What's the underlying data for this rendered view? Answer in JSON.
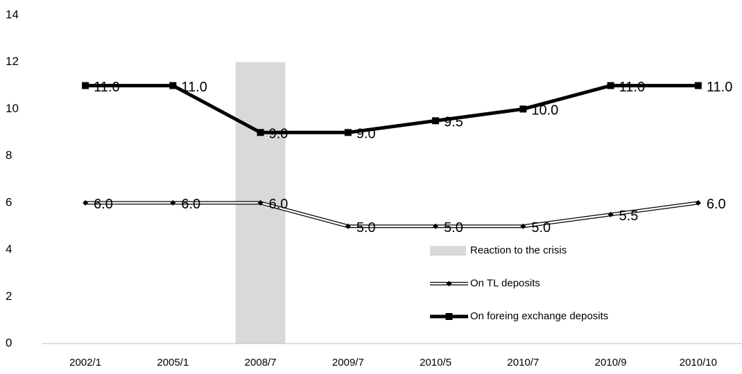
{
  "chart_data": {
    "type": "line",
    "categories": [
      "2002/1",
      "2005/1",
      "2008/7",
      "2009/7",
      "2010/5",
      "2010/7",
      "2010/9",
      "2010/10"
    ],
    "series": [
      {
        "name": "Reaction to the crisis",
        "type": "bar",
        "color": "#d9d9d9",
        "values": [
          null,
          null,
          12,
          null,
          null,
          null,
          null,
          null
        ]
      },
      {
        "name": "On TL deposits",
        "type": "line",
        "color": "#000000",
        "marker": "diamond",
        "values": [
          6,
          6,
          6,
          5,
          5,
          5,
          5.5,
          6
        ],
        "value_labels": [
          "6.0",
          "6.0",
          "6.0",
          "5.0",
          "5.0",
          "5.0",
          "5.5",
          "6.0"
        ]
      },
      {
        "name": "On foreing exchange deposits",
        "type": "line",
        "color": "#000000",
        "marker": "square",
        "values": [
          11,
          11,
          9,
          9,
          9.5,
          10,
          11,
          11
        ],
        "value_labels": [
          "11.0",
          "11.0",
          "9.0",
          "9.0",
          "9.5",
          "10.0",
          "11.0",
          "11.0"
        ]
      }
    ],
    "ylim": [
      0,
      14
    ],
    "yticks": [
      0,
      2,
      4,
      6,
      8,
      10,
      12,
      14
    ],
    "grid": false
  }
}
